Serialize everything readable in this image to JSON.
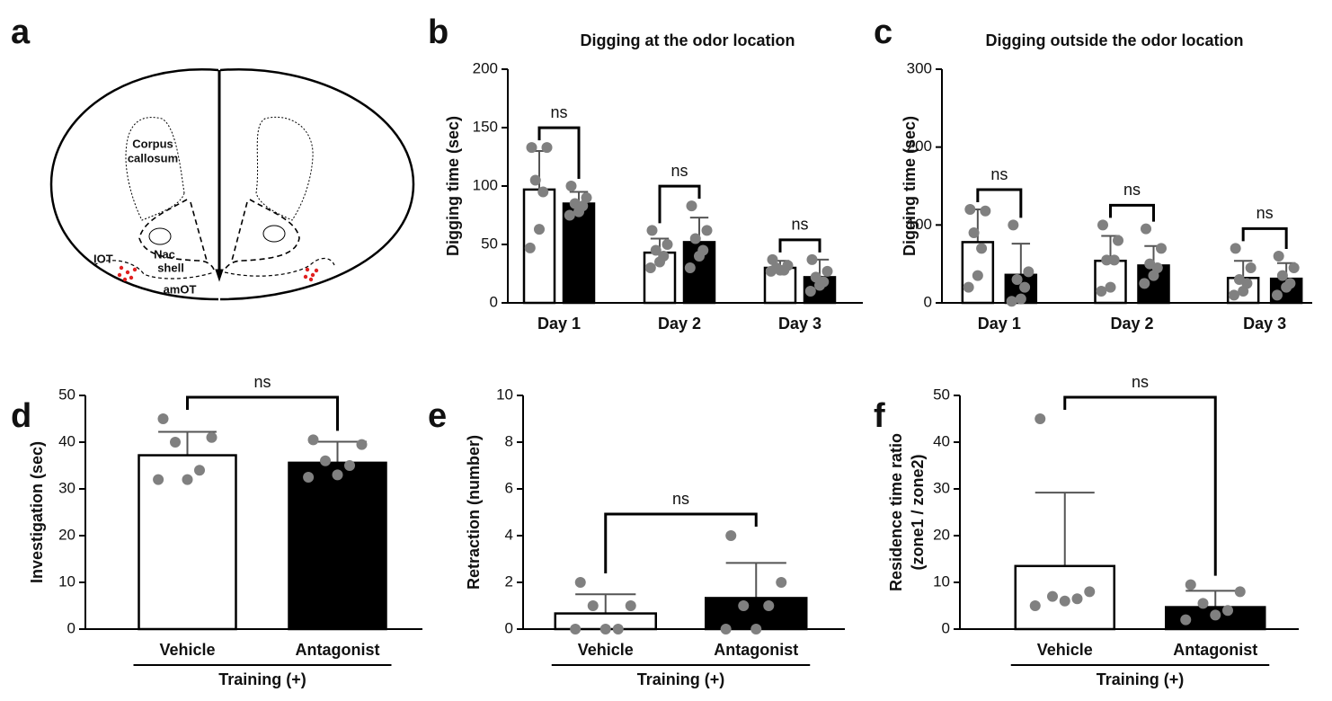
{
  "panel_labels": [
    "a",
    "b",
    "c",
    "d",
    "e",
    "f"
  ],
  "diagram": {
    "labels": [
      "Corpus",
      "callosum",
      "IOT",
      "Nac",
      "shell",
      "amOT"
    ]
  },
  "chart_data": [
    {
      "type": "bar",
      "title": "Digging at the odor location",
      "ylabel": "Digging time (sec)",
      "categories": [
        "Day 1",
        "Day 2",
        "Day 3"
      ],
      "ylim": [
        0,
        200
      ],
      "yticks": [
        0,
        50,
        100,
        150,
        200
      ],
      "significance": [
        "ns",
        "ns",
        "ns"
      ],
      "series": [
        {
          "color": "#ffffff",
          "values": [
            97,
            43,
            30
          ],
          "errors": [
            33,
            12,
            6
          ],
          "points": [
            [
              133,
              133,
              105,
              95,
              63,
              47
            ],
            [
              62,
              50,
              45,
              40,
              35,
              30
            ],
            [
              37,
              32,
              30,
              28,
              28,
              27
            ]
          ]
        },
        {
          "color": "#000000",
          "values": [
            85,
            52,
            22
          ],
          "errors": [
            10,
            21,
            15
          ],
          "points": [
            [
              100,
              90,
              85,
              83,
              78,
              75
            ],
            [
              83,
              62,
              55,
              45,
              40,
              30
            ],
            [
              37,
              27,
              22,
              18,
              15,
              10
            ]
          ]
        }
      ]
    },
    {
      "type": "bar",
      "title": "Digging outside the odor location",
      "ylabel": "Digging time (sec)",
      "categories": [
        "Day 1",
        "Day 2",
        "Day 3"
      ],
      "ylim": [
        0,
        300
      ],
      "yticks": [
        0,
        100,
        200,
        300
      ],
      "significance": [
        "ns",
        "ns",
        "ns"
      ],
      "series": [
        {
          "color": "#ffffff",
          "values": [
            78,
            54,
            32
          ],
          "errors": [
            42,
            32,
            22
          ],
          "points": [
            [
              120,
              118,
              90,
              70,
              35,
              20
            ],
            [
              100,
              80,
              55,
              55,
              20,
              15
            ],
            [
              70,
              45,
              30,
              25,
              15,
              10
            ]
          ]
        },
        {
          "color": "#000000",
          "values": [
            36,
            48,
            31
          ],
          "errors": [
            40,
            25,
            20
          ],
          "points": [
            [
              100,
              40,
              30,
              20,
              5,
              2
            ],
            [
              95,
              70,
              50,
              45,
              35,
              25
            ],
            [
              60,
              45,
              35,
              25,
              20,
              10
            ]
          ]
        }
      ]
    },
    {
      "type": "bar",
      "ylabel": "Investigation (sec)",
      "xlabel": "Training (+)",
      "categories": [
        "Vehicle",
        "Antagonist"
      ],
      "ylim": [
        0,
        50
      ],
      "yticks": [
        0,
        10,
        20,
        30,
        40,
        50
      ],
      "significance": [
        "ns"
      ],
      "series": [
        {
          "colors": [
            "#ffffff",
            "#000000"
          ],
          "values": [
            37.2,
            35.6
          ],
          "errors": [
            5,
            4.5
          ],
          "points": [
            [
              45,
              41,
              40,
              34,
              32,
              32
            ],
            [
              40.5,
              39.5,
              36,
              35,
              33,
              32.5
            ]
          ]
        }
      ]
    },
    {
      "type": "bar",
      "ylabel": "Retraction (number)",
      "xlabel": "Training (+)",
      "categories": [
        "Vehicle",
        "Antagonist"
      ],
      "ylim": [
        0,
        10
      ],
      "yticks": [
        0,
        2,
        4,
        6,
        8,
        10
      ],
      "significance": [
        "ns"
      ],
      "series": [
        {
          "colors": [
            "#ffffff",
            "#000000"
          ],
          "values": [
            0.67,
            1.33
          ],
          "errors": [
            0.82,
            1.5
          ],
          "points": [
            [
              2,
              1,
              1,
              0,
              0,
              0
            ],
            [
              4,
              2,
              1,
              1,
              0,
              0
            ]
          ]
        }
      ]
    },
    {
      "type": "bar",
      "ylabel": [
        "Residence time ratio",
        "(zone1 / zone2)"
      ],
      "xlabel": "Training (+)",
      "categories": [
        "Vehicle",
        "Antagonist"
      ],
      "ylim": [
        0,
        50
      ],
      "yticks": [
        0,
        10,
        20,
        30,
        40,
        50
      ],
      "significance": [
        "ns"
      ],
      "series": [
        {
          "colors": [
            "#ffffff",
            "#000000"
          ],
          "values": [
            13.5,
            4.7
          ],
          "errors": [
            15.7,
            3.5
          ],
          "points": [
            [
              45,
              8,
              7,
              6.5,
              6,
              5
            ],
            [
              9.5,
              8,
              5.5,
              4,
              3,
              2
            ]
          ]
        }
      ]
    }
  ]
}
